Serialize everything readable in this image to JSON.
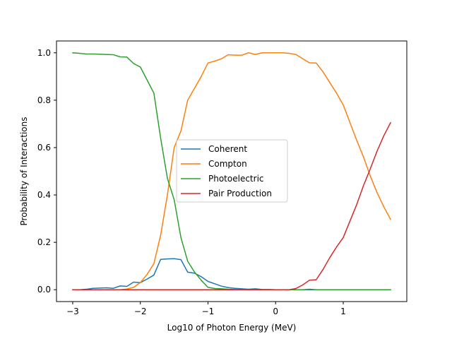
{
  "chart_data": {
    "type": "line",
    "title": "",
    "xlabel": "Log10 of Photon Energy (MeV)",
    "ylabel": "Probability of Interactions",
    "xlim": [
      -3.24,
      1.94
    ],
    "ylim": [
      -0.05,
      1.05
    ],
    "xticks": [
      -3,
      -2,
      -1,
      0,
      1
    ],
    "xtick_labels": [
      "−3",
      "−2",
      "−1",
      "0",
      "1"
    ],
    "yticks": [
      0.0,
      0.2,
      0.4,
      0.6,
      0.8,
      1.0
    ],
    "ytick_labels": [
      "0.0",
      "0.2",
      "0.4",
      "0.6",
      "0.8",
      "1.0"
    ],
    "grid": false,
    "legend_position": "center",
    "x": [
      -3.0,
      -2.9,
      -2.8,
      -2.7,
      -2.6,
      -2.5,
      -2.4,
      -2.3,
      -2.2,
      -2.1,
      -2.0,
      -1.9,
      -1.8,
      -1.7,
      -1.6,
      -1.5,
      -1.4,
      -1.3,
      -1.2,
      -1.1,
      -1.0,
      -0.9,
      -0.8,
      -0.7,
      -0.6,
      -0.5,
      -0.4,
      -0.3,
      -0.2,
      -0.1,
      0.0,
      0.1,
      0.2,
      0.3,
      0.4,
      0.5,
      0.6,
      0.7,
      0.8,
      0.9,
      1.0,
      1.1,
      1.2,
      1.3,
      1.4,
      1.5,
      1.6,
      1.7
    ],
    "series": [
      {
        "name": "Coherent",
        "color": "#1f77b4",
        "values": [
          0.0,
          0.0,
          0.002,
          0.006,
          0.007,
          0.008,
          0.006,
          0.016,
          0.014,
          0.032,
          0.03,
          0.045,
          0.062,
          0.128,
          0.13,
          0.131,
          0.127,
          0.074,
          0.07,
          0.055,
          0.035,
          0.025,
          0.015,
          0.009,
          0.006,
          0.004,
          0.002,
          0.004,
          0.001,
          0.001,
          0.0,
          0.0,
          0.0,
          0.0,
          0.0,
          0.0,
          0.0,
          0.0,
          0.0,
          0.0,
          0.0,
          0.0,
          0.0,
          0.0,
          0.0,
          0.0,
          0.0,
          0.0
        ]
      },
      {
        "name": "Compton",
        "color": "#ff7f0e",
        "values": [
          0.0,
          0.0,
          0.0,
          0.0,
          0.0,
          0.0,
          0.0,
          0.0,
          0.003,
          0.01,
          0.03,
          0.065,
          0.11,
          0.23,
          0.4,
          0.6,
          0.67,
          0.8,
          0.85,
          0.9,
          0.957,
          0.965,
          0.975,
          0.992,
          0.99,
          0.99,
          1.0,
          0.993,
          1.0,
          1.0,
          1.0,
          1.0,
          0.998,
          0.993,
          0.975,
          0.958,
          0.957,
          0.92,
          0.875,
          0.83,
          0.78,
          0.705,
          0.63,
          0.56,
          0.48,
          0.41,
          0.35,
          0.297
        ]
      },
      {
        "name": "Photoelectric",
        "color": "#2ca02c",
        "values": [
          1.0,
          0.998,
          0.995,
          0.995,
          0.994,
          0.993,
          0.992,
          0.983,
          0.982,
          0.955,
          0.94,
          0.885,
          0.83,
          0.64,
          0.47,
          0.38,
          0.22,
          0.12,
          0.075,
          0.04,
          0.01,
          0.005,
          0.004,
          0.002,
          0.001,
          0.001,
          0.001,
          0.001,
          0.0,
          0.0,
          0.0,
          0.0,
          0.0,
          0.0,
          0.0,
          0.002,
          0.0,
          0.0,
          0.0,
          0.0,
          0.0,
          0.0,
          0.0,
          0.0,
          0.0,
          0.0,
          0.0,
          0.0
        ]
      },
      {
        "name": "Pair Production",
        "color": "#d62728",
        "values": [
          0.0,
          0.0,
          0.0,
          0.0,
          0.0,
          0.0,
          0.0,
          0.0,
          0.0,
          0.0,
          0.0,
          0.0,
          0.0,
          0.0,
          0.0,
          0.0,
          0.0,
          0.0,
          0.0,
          0.0,
          0.0,
          0.0,
          0.0,
          0.0,
          0.0,
          0.0,
          0.0,
          0.0,
          0.0,
          0.0,
          0.0,
          0.0,
          0.0,
          0.005,
          0.02,
          0.04,
          0.042,
          0.085,
          0.135,
          0.18,
          0.22,
          0.29,
          0.36,
          0.44,
          0.51,
          0.585,
          0.65,
          0.705
        ]
      }
    ]
  }
}
